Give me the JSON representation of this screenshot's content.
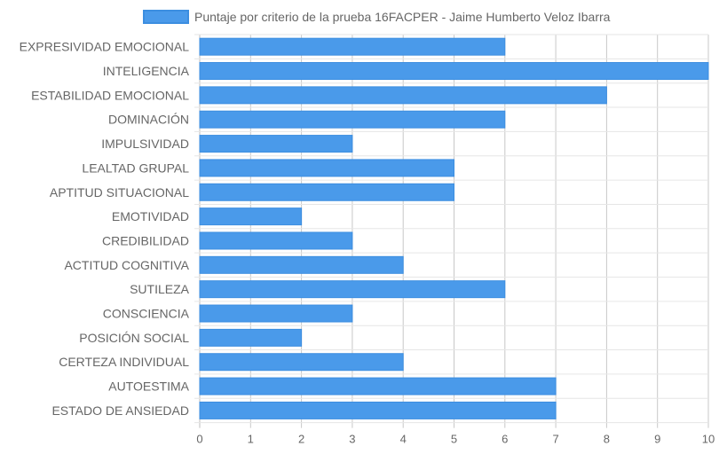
{
  "chart_data": {
    "type": "bar",
    "orientation": "horizontal",
    "categories": [
      "EXPRESIVIDAD EMOCIONAL",
      "INTELIGENCIA",
      "ESTABILIDAD EMOCIONAL",
      "DOMINACIÓN",
      "IMPULSIVIDAD",
      "LEALTAD GRUPAL",
      "APTITUD SITUACIONAL",
      "EMOTIVIDAD",
      "CREDIBILIDAD",
      "ACTITUD COGNITIVA",
      "SUTILEZA",
      "CONSCIENCIA",
      "POSICIÓN SOCIAL",
      "CERTEZA INDIVIDUAL",
      "AUTOESTIMA",
      "ESTADO DE ANSIEDAD"
    ],
    "series": [
      {
        "name": "Puntaje por criterio de la prueba 16FACPER - Jaime Humberto Veloz Ibarra",
        "values": [
          6,
          10,
          8,
          6,
          3,
          5,
          5,
          2,
          3,
          4,
          6,
          3,
          2,
          4,
          7,
          7
        ],
        "color": "#4a9aea",
        "border_color": "#3c8ee0"
      }
    ],
    "xlim": [
      0,
      10
    ],
    "xticks": [
      "0",
      "1",
      "2",
      "3",
      "4",
      "5",
      "6",
      "7",
      "8",
      "9",
      "10"
    ],
    "grid": true,
    "legend_position": "top-center",
    "title": "",
    "xlabel": "",
    "ylabel": ""
  }
}
